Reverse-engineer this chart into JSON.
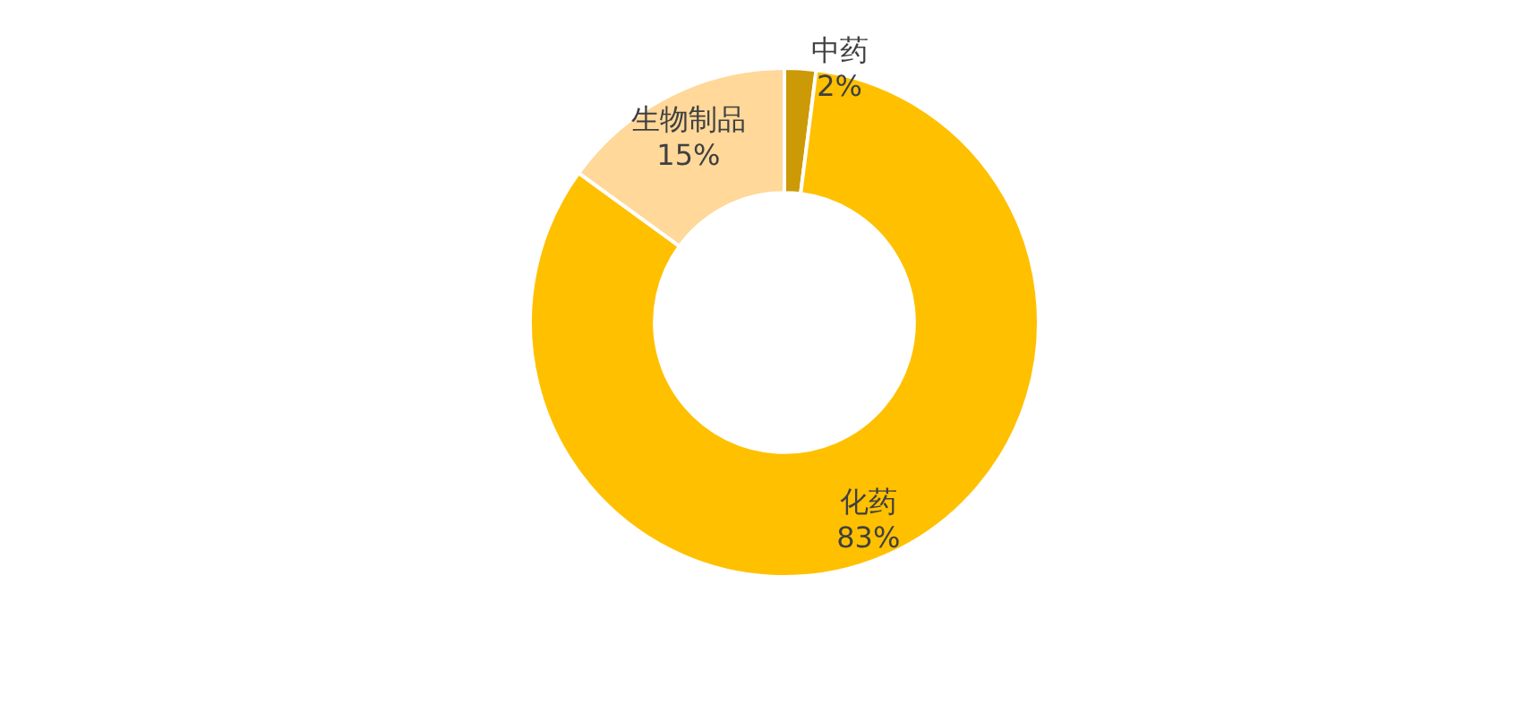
{
  "chart_data": {
    "type": "donut",
    "categories": [
      "中药",
      "化药",
      "生物制品"
    ],
    "values": [
      2,
      83,
      15
    ],
    "value_labels": [
      "2%",
      "83%",
      "15%"
    ],
    "colors": [
      "#cc9a06",
      "#ffc000",
      "#ffd89a"
    ]
  }
}
